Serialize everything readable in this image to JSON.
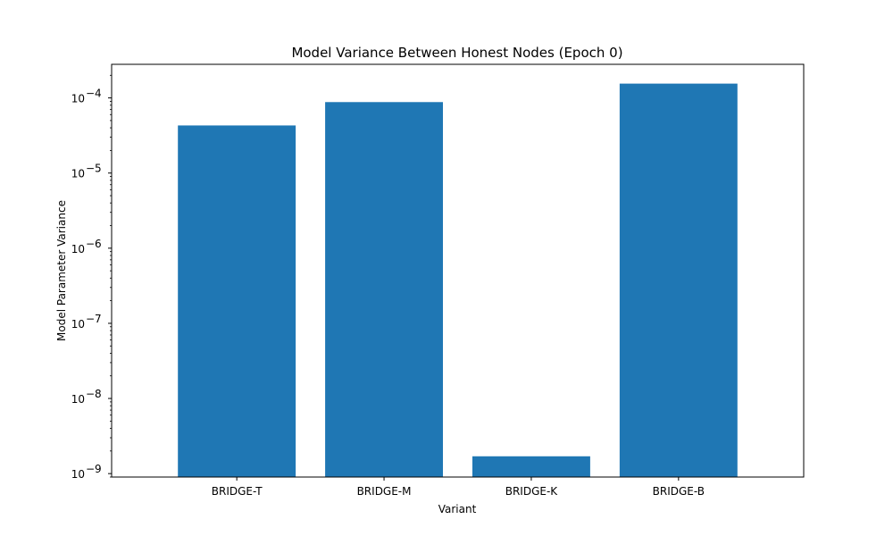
{
  "chart_data": {
    "type": "bar",
    "title": "Model Variance Between Honest Nodes (Epoch 0)",
    "xlabel": "Variant",
    "ylabel": "Model Parameter Variance",
    "categories": [
      "BRIDGE-T",
      "BRIDGE-M",
      "BRIDGE-K",
      "BRIDGE-B"
    ],
    "values": [
      4.3e-05,
      8.8e-05,
      1.7e-09,
      0.000155
    ],
    "yscale": "log",
    "ylim": [
      9e-10,
      0.00028
    ],
    "y_major_ticks": [
      {
        "value": 1e-09,
        "mantissa": "10",
        "exp": "−9"
      },
      {
        "value": 1e-08,
        "mantissa": "10",
        "exp": "−8"
      },
      {
        "value": 1e-07,
        "mantissa": "10",
        "exp": "−7"
      },
      {
        "value": 1e-06,
        "mantissa": "10",
        "exp": "−6"
      },
      {
        "value": 1e-05,
        "mantissa": "10",
        "exp": "−5"
      },
      {
        "value": 0.0001,
        "mantissa": "10",
        "exp": "−4"
      }
    ],
    "bar_color": "#1f77b4",
    "grid": false,
    "legend": "none"
  }
}
